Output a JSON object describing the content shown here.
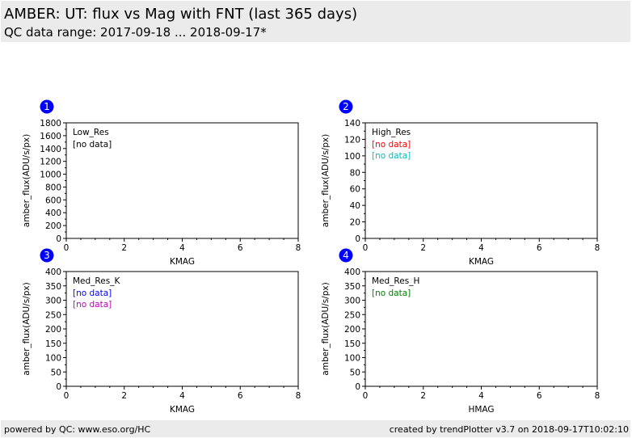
{
  "header": {
    "title": "AMBER: UT: flux vs Mag with FNT (last 365 days)",
    "subtitle": "QC data range: 2017-09-18 ... 2018-09-17*"
  },
  "footer": {
    "left": "powered by QC: www.eso.org/HC",
    "right": "created by trendPlotter v3.7 on 2018-09-17T10:02:10"
  },
  "colors": {
    "badge": "#0000ff",
    "header_bg": "#ebebeb"
  },
  "chart_data": [
    {
      "type": "scatter",
      "badge": "1",
      "panel_label": "Low_Res",
      "xlabel": "KMAG",
      "ylabel": "amber_flux(ADU/s/px)",
      "xlim": [
        0,
        8
      ],
      "ylim": [
        0,
        1800
      ],
      "xticks": [
        0,
        2,
        4,
        6,
        8
      ],
      "yticks": [
        0,
        200,
        400,
        600,
        800,
        1000,
        1200,
        1400,
        1600,
        1800
      ],
      "series": [
        {
          "label": "[no data]",
          "color": "#000000",
          "points": []
        }
      ]
    },
    {
      "type": "scatter",
      "badge": "2",
      "panel_label": "High_Res",
      "xlabel": "KMAG",
      "ylabel": "amber_flux(ADU/s/px)",
      "xlim": [
        0,
        8
      ],
      "ylim": [
        0,
        140
      ],
      "xticks": [
        0,
        2,
        4,
        6,
        8
      ],
      "yticks": [
        0,
        20,
        40,
        60,
        80,
        100,
        120,
        140
      ],
      "series": [
        {
          "label": "[no data]",
          "color": "#ff0000",
          "points": []
        },
        {
          "label": "[no data]",
          "color": "#00bfbf",
          "points": []
        }
      ]
    },
    {
      "type": "scatter",
      "badge": "3",
      "panel_label": "Med_Res_K",
      "xlabel": "KMAG",
      "ylabel": "amber_flux(ADU/s/px)",
      "xlim": [
        0,
        8
      ],
      "ylim": [
        0,
        400
      ],
      "xticks": [
        0,
        2,
        4,
        6,
        8
      ],
      "yticks": [
        0,
        50,
        100,
        150,
        200,
        250,
        300,
        350,
        400
      ],
      "series": [
        {
          "label": "[no data]",
          "color": "#0000ff",
          "points": []
        },
        {
          "label": "[no data]",
          "color": "#bf00bf",
          "points": []
        }
      ]
    },
    {
      "type": "scatter",
      "badge": "4",
      "panel_label": "Med_Res_H",
      "xlabel": "HMAG",
      "ylabel": "amber_flux(ADU/s/px)",
      "xlim": [
        0,
        8
      ],
      "ylim": [
        0,
        400
      ],
      "xticks": [
        0,
        2,
        4,
        6,
        8
      ],
      "yticks": [
        0,
        50,
        100,
        150,
        200,
        250,
        300,
        350,
        400
      ],
      "series": [
        {
          "label": "[no data]",
          "color": "#008000",
          "points": []
        }
      ]
    }
  ]
}
